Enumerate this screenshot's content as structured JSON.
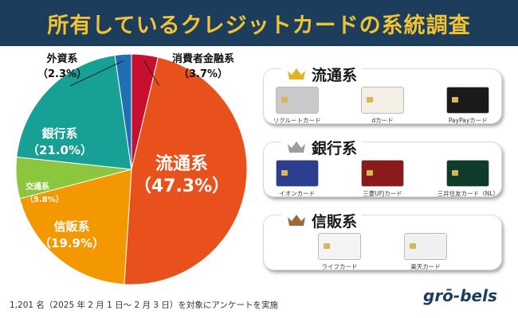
{
  "header": {
    "title": "所有しているクレジットカードの系統調査"
  },
  "chart_data": {
    "type": "pie",
    "title": "",
    "slices": [
      {
        "label": "消費者金融系",
        "value": 3.7,
        "value_text": "（3.7%）",
        "color": "#c8102e"
      },
      {
        "label": "流通系",
        "value": 47.3,
        "value_text": "（47.3%）",
        "color": "#e8501c"
      },
      {
        "label": "信販系",
        "value": 19.9,
        "value_text": "（19.9%）",
        "color": "#f39800"
      },
      {
        "label": "交通系",
        "value": 5.8,
        "value_text": "（5.8%）",
        "color": "#8cc63f"
      },
      {
        "label": "銀行系",
        "value": 21.0,
        "value_text": "（21.0%）",
        "color": "#16a096"
      },
      {
        "label": "外資系",
        "value": 2.3,
        "value_text": "（2.3%）",
        "color": "#1f6fb5"
      }
    ]
  },
  "panels": [
    {
      "title": "流通系",
      "crown_color": "#e0b422",
      "cards": [
        {
          "label": "リクルートカード",
          "color": "#c9c9c9"
        },
        {
          "label": "dカード",
          "color": "#f4efe4"
        },
        {
          "label": "PayPayカード",
          "color": "#1a1a1a"
        }
      ]
    },
    {
      "title": "銀行系",
      "crown_color": "#9e9e9e",
      "cards": [
        {
          "label": "イオンカード",
          "color": "#2c3e8f"
        },
        {
          "label": "三菱UFJカード",
          "color": "#8b1a1a"
        },
        {
          "label": "三井住友カード（NL）",
          "color": "#0f3b2a"
        }
      ]
    },
    {
      "title": "信販系",
      "crown_color": "#9c6b3a",
      "cards": [
        {
          "label": "ライフカード",
          "color": "#f4f4f4"
        },
        {
          "label": "楽天カード",
          "color": "#f0f0f0"
        }
      ]
    }
  ],
  "footnote": "1,201 名（2025 年 2 月 1 日～ 2 月 3 日）を対象にアンケートを実施",
  "logo": "grō-bels"
}
